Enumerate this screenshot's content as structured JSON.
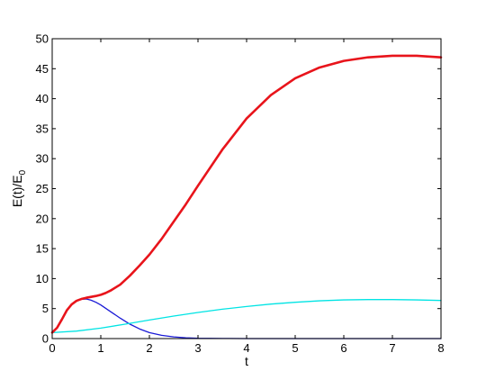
{
  "chart_data": {
    "type": "line",
    "title": "",
    "xlabel": "t",
    "ylabel": {
      "main": "E(t)/E",
      "subscript": "0"
    },
    "xlim": [
      0,
      8
    ],
    "ylim": [
      0,
      50
    ],
    "xticks": [
      "0",
      "1",
      "2",
      "3",
      "4",
      "5",
      "6",
      "7",
      "8"
    ],
    "yticks": [
      "0",
      "5",
      "10",
      "15",
      "20",
      "25",
      "30",
      "35",
      "40",
      "45",
      "50"
    ],
    "grid": false,
    "legend": "none",
    "series": [
      {
        "color": "#e8141b",
        "line_width": "thick",
        "x": [
          0,
          0.1,
          0.2,
          0.3,
          0.4,
          0.5,
          0.6,
          0.7,
          0.8,
          0.9,
          1.0,
          1.1,
          1.2,
          1.4,
          1.6,
          1.8,
          2.0,
          2.25,
          2.5,
          2.75,
          3.0,
          3.5,
          4.0,
          4.5,
          5.0,
          5.5,
          6.0,
          6.5,
          7.0,
          7.5,
          8.0
        ],
        "y": [
          1.0,
          1.8,
          3.2,
          4.7,
          5.7,
          6.3,
          6.6,
          6.8,
          6.95,
          7.1,
          7.3,
          7.6,
          8.0,
          9.0,
          10.5,
          12.2,
          14.0,
          16.6,
          19.5,
          22.4,
          25.5,
          31.5,
          36.7,
          40.6,
          43.4,
          45.2,
          46.3,
          46.9,
          47.15,
          47.15,
          46.9
        ]
      },
      {
        "color": "#1a1ad6",
        "line_width": "thin",
        "x": [
          0,
          0.1,
          0.2,
          0.3,
          0.4,
          0.5,
          0.6,
          0.7,
          0.8,
          0.9,
          1.0,
          1.2,
          1.4,
          1.6,
          1.8,
          2.0,
          2.25,
          2.5,
          2.75,
          3.0,
          3.5,
          4.0,
          5.0,
          6.0,
          7.0,
          8.0
        ],
        "y": [
          1.0,
          1.8,
          3.2,
          4.7,
          5.7,
          6.3,
          6.55,
          6.6,
          6.4,
          6.05,
          5.6,
          4.5,
          3.4,
          2.4,
          1.6,
          1.0,
          0.55,
          0.28,
          0.13,
          0.06,
          0.02,
          0.0,
          0.0,
          0.0,
          0.0,
          0.0
        ]
      },
      {
        "color": "#00e4e4",
        "line_width": "thin",
        "x": [
          0,
          0.5,
          1.0,
          1.5,
          2.0,
          2.5,
          3.0,
          3.5,
          4.0,
          4.5,
          5.0,
          5.5,
          6.0,
          6.5,
          7.0,
          7.5,
          8.0
        ],
        "y": [
          1.0,
          1.25,
          1.75,
          2.4,
          3.1,
          3.75,
          4.35,
          4.9,
          5.35,
          5.75,
          6.05,
          6.3,
          6.45,
          6.5,
          6.5,
          6.45,
          6.35
        ]
      }
    ]
  }
}
